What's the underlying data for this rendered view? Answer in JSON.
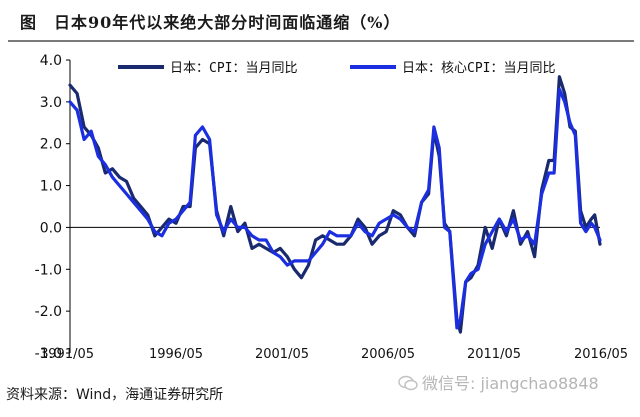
{
  "title": "图　日本90年代以来绝大部分时间面临通缩（%）",
  "source": "资料来源：Wind，海通证券研究所",
  "watermark": "微信号: jiangchao8848",
  "colors": {
    "cpi": "#1a2a6e",
    "core_cpi": "#1c2fe0",
    "axis": "#000000"
  },
  "chart_data": {
    "type": "line",
    "title": "图　日本90年代以来绝大部分时间面临通缩（%）",
    "xlabel": "",
    "ylabel": "",
    "ylim": [
      -3.0,
      4.0
    ],
    "yticks": [
      "4.0",
      "3.0",
      "2.0",
      "1.0",
      "0.0",
      "-1.0",
      "-2.0",
      "-3.0"
    ],
    "xticks": [
      "1991/05",
      "1996/05",
      "2001/05",
      "2006/05",
      "2011/05",
      "2016/05"
    ],
    "x_start": "1991/05",
    "x_end": "2016/05",
    "legend_position": "top",
    "grid": false,
    "series": [
      {
        "name": "日本：CPI：当月同比",
        "color": "#1a2a6e",
        "points": [
          [
            "1991/05",
            3.4
          ],
          [
            "1991/09",
            3.2
          ],
          [
            "1992/01",
            2.4
          ],
          [
            "1992/05",
            2.2
          ],
          [
            "1992/09",
            1.9
          ],
          [
            "1993/01",
            1.3
          ],
          [
            "1993/05",
            1.4
          ],
          [
            "1993/09",
            1.2
          ],
          [
            "1994/01",
            1.1
          ],
          [
            "1994/05",
            0.7
          ],
          [
            "1994/09",
            0.5
          ],
          [
            "1995/01",
            0.3
          ],
          [
            "1995/05",
            -0.2
          ],
          [
            "1995/09",
            0.0
          ],
          [
            "1996/01",
            0.2
          ],
          [
            "1996/05",
            0.1
          ],
          [
            "1996/09",
            0.5
          ],
          [
            "1997/01",
            0.5
          ],
          [
            "1997/04",
            1.9
          ],
          [
            "1997/08",
            2.1
          ],
          [
            "1997/12",
            2.0
          ],
          [
            "1998/04",
            0.4
          ],
          [
            "1998/08",
            -0.2
          ],
          [
            "1998/12",
            0.5
          ],
          [
            "1999/04",
            -0.1
          ],
          [
            "1999/08",
            0.1
          ],
          [
            "1999/12",
            -0.5
          ],
          [
            "2000/04",
            -0.4
          ],
          [
            "2000/08",
            -0.5
          ],
          [
            "2000/12",
            -0.6
          ],
          [
            "2001/04",
            -0.5
          ],
          [
            "2001/08",
            -0.7
          ],
          [
            "2001/12",
            -1.0
          ],
          [
            "2002/04",
            -1.2
          ],
          [
            "2002/08",
            -0.9
          ],
          [
            "2002/12",
            -0.3
          ],
          [
            "2003/04",
            -0.2
          ],
          [
            "2003/08",
            -0.3
          ],
          [
            "2003/12",
            -0.4
          ],
          [
            "2004/04",
            -0.4
          ],
          [
            "2004/08",
            -0.2
          ],
          [
            "2004/12",
            0.2
          ],
          [
            "2005/04",
            0.0
          ],
          [
            "2005/08",
            -0.4
          ],
          [
            "2005/12",
            -0.2
          ],
          [
            "2006/04",
            -0.1
          ],
          [
            "2006/08",
            0.4
          ],
          [
            "2006/12",
            0.3
          ],
          [
            "2007/04",
            0.0
          ],
          [
            "2007/08",
            -0.2
          ],
          [
            "2007/12",
            0.6
          ],
          [
            "2008/04",
            0.8
          ],
          [
            "2008/07",
            2.3
          ],
          [
            "2008/10",
            1.7
          ],
          [
            "2009/01",
            0.1
          ],
          [
            "2009/04",
            -0.1
          ],
          [
            "2009/08",
            -2.2
          ],
          [
            "2009/10",
            -2.5
          ],
          [
            "2010/01",
            -1.3
          ],
          [
            "2010/04",
            -1.2
          ],
          [
            "2010/08",
            -0.9
          ],
          [
            "2010/12",
            0.0
          ],
          [
            "2011/04",
            -0.5
          ],
          [
            "2011/08",
            0.2
          ],
          [
            "2011/12",
            -0.2
          ],
          [
            "2012/04",
            0.4
          ],
          [
            "2012/08",
            -0.4
          ],
          [
            "2012/12",
            -0.1
          ],
          [
            "2013/04",
            -0.7
          ],
          [
            "2013/08",
            0.9
          ],
          [
            "2013/12",
            1.6
          ],
          [
            "2014/03",
            1.6
          ],
          [
            "2014/06",
            3.6
          ],
          [
            "2014/09",
            3.2
          ],
          [
            "2014/12",
            2.4
          ],
          [
            "2015/03",
            2.3
          ],
          [
            "2015/06",
            0.4
          ],
          [
            "2015/09",
            0.0
          ],
          [
            "2015/12",
            0.2
          ],
          [
            "2016/02",
            0.3
          ],
          [
            "2016/05",
            -0.4
          ]
        ]
      },
      {
        "name": "日本：核心CPI：当月同比",
        "color": "#1c2fe0",
        "points": [
          [
            "1991/05",
            3.0
          ],
          [
            "1991/09",
            2.8
          ],
          [
            "1992/01",
            2.1
          ],
          [
            "1992/05",
            2.3
          ],
          [
            "1992/09",
            1.7
          ],
          [
            "1993/01",
            1.5
          ],
          [
            "1993/05",
            1.2
          ],
          [
            "1993/09",
            1.0
          ],
          [
            "1994/01",
            0.8
          ],
          [
            "1994/05",
            0.6
          ],
          [
            "1994/09",
            0.4
          ],
          [
            "1995/01",
            0.2
          ],
          [
            "1995/05",
            -0.1
          ],
          [
            "1995/09",
            -0.2
          ],
          [
            "1996/01",
            0.1
          ],
          [
            "1996/05",
            0.2
          ],
          [
            "1996/09",
            0.4
          ],
          [
            "1997/01",
            0.6
          ],
          [
            "1997/04",
            2.2
          ],
          [
            "1997/08",
            2.4
          ],
          [
            "1997/12",
            2.1
          ],
          [
            "1998/04",
            0.3
          ],
          [
            "1998/08",
            -0.1
          ],
          [
            "1998/12",
            0.2
          ],
          [
            "1999/04",
            0.0
          ],
          [
            "1999/08",
            0.0
          ],
          [
            "1999/12",
            -0.2
          ],
          [
            "2000/04",
            -0.3
          ],
          [
            "2000/08",
            -0.3
          ],
          [
            "2000/12",
            -0.6
          ],
          [
            "2001/04",
            -0.7
          ],
          [
            "2001/08",
            -0.9
          ],
          [
            "2001/12",
            -0.8
          ],
          [
            "2002/04",
            -0.8
          ],
          [
            "2002/08",
            -0.8
          ],
          [
            "2002/12",
            -0.6
          ],
          [
            "2003/04",
            -0.4
          ],
          [
            "2003/08",
            -0.1
          ],
          [
            "2003/12",
            -0.2
          ],
          [
            "2004/04",
            -0.2
          ],
          [
            "2004/08",
            -0.2
          ],
          [
            "2004/12",
            0.1
          ],
          [
            "2005/04",
            -0.1
          ],
          [
            "2005/08",
            -0.2
          ],
          [
            "2005/12",
            0.1
          ],
          [
            "2006/04",
            0.2
          ],
          [
            "2006/08",
            0.3
          ],
          [
            "2006/12",
            0.2
          ],
          [
            "2007/04",
            0.0
          ],
          [
            "2007/08",
            -0.1
          ],
          [
            "2007/12",
            0.6
          ],
          [
            "2008/04",
            0.9
          ],
          [
            "2008/07",
            2.4
          ],
          [
            "2008/10",
            1.9
          ],
          [
            "2009/01",
            0.0
          ],
          [
            "2009/04",
            -0.1
          ],
          [
            "2009/08",
            -2.4
          ],
          [
            "2009/10",
            -2.2
          ],
          [
            "2010/01",
            -1.3
          ],
          [
            "2010/04",
            -1.1
          ],
          [
            "2010/08",
            -1.0
          ],
          [
            "2010/12",
            -0.4
          ],
          [
            "2011/04",
            -0.1
          ],
          [
            "2011/08",
            0.2
          ],
          [
            "2011/12",
            -0.1
          ],
          [
            "2012/04",
            0.2
          ],
          [
            "2012/08",
            -0.3
          ],
          [
            "2012/12",
            -0.2
          ],
          [
            "2013/04",
            -0.4
          ],
          [
            "2013/08",
            0.8
          ],
          [
            "2013/12",
            1.3
          ],
          [
            "2014/03",
            1.3
          ],
          [
            "2014/06",
            3.3
          ],
          [
            "2014/09",
            3.0
          ],
          [
            "2014/12",
            2.5
          ],
          [
            "2015/03",
            2.2
          ],
          [
            "2015/06",
            0.1
          ],
          [
            "2015/09",
            -0.1
          ],
          [
            "2015/12",
            0.1
          ],
          [
            "2016/02",
            0.0
          ],
          [
            "2016/05",
            -0.3
          ]
        ]
      }
    ]
  }
}
